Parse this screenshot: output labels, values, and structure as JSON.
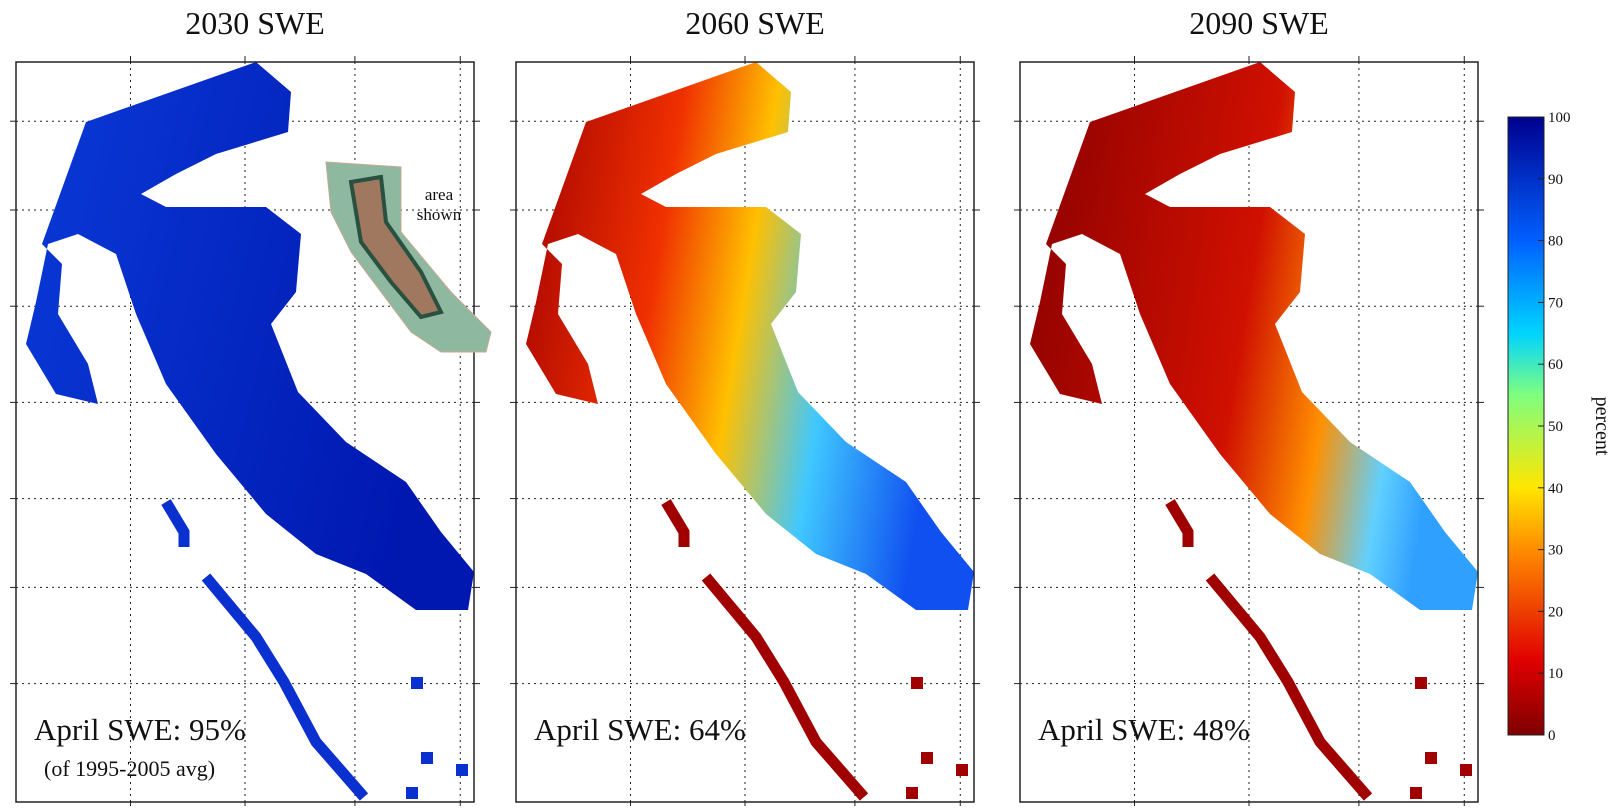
{
  "panels": [
    {
      "title": "2030 SWE",
      "annotation": "April SWE: 95%",
      "note": "(of 1995-2005 avg)"
    },
    {
      "title": "2060 SWE",
      "annotation": "April SWE: 64%"
    },
    {
      "title": "2090 SWE",
      "annotation": "April SWE: 48%"
    }
  ],
  "inset": {
    "label_lines": [
      "area",
      "shown"
    ]
  },
  "colorbar": {
    "label": "percent",
    "range": [
      0,
      100
    ],
    "ticks": [
      0,
      10,
      20,
      30,
      40,
      50,
      60,
      70,
      80,
      90,
      100
    ]
  }
}
